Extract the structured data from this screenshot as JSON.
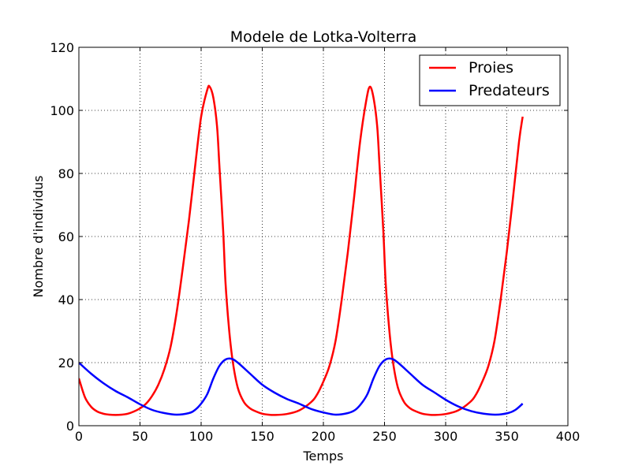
{
  "chart_data": {
    "type": "line",
    "title": "Modele de Lotka-Volterra",
    "xlabel": "Temps",
    "ylabel": "Nombre d'individus",
    "xlim": [
      0,
      400
    ],
    "ylim": [
      0,
      120
    ],
    "xticks": [
      0,
      50,
      100,
      150,
      200,
      250,
      300,
      350,
      400
    ],
    "yticks": [
      0,
      20,
      40,
      60,
      80,
      100,
      120
    ],
    "grid": true,
    "legend_position": "top-right",
    "series": [
      {
        "name": "Proies",
        "color": "#ff0000",
        "points": [
          [
            0,
            15
          ],
          [
            5,
            9
          ],
          [
            10,
            6
          ],
          [
            15,
            4.5
          ],
          [
            20,
            3.8
          ],
          [
            25,
            3.5
          ],
          [
            30,
            3.4
          ],
          [
            35,
            3.5
          ],
          [
            40,
            3.8
          ],
          [
            45,
            4.5
          ],
          [
            50,
            5.5
          ],
          [
            55,
            7
          ],
          [
            60,
            9.5
          ],
          [
            65,
            13
          ],
          [
            70,
            18
          ],
          [
            75,
            25
          ],
          [
            80,
            36
          ],
          [
            85,
            50
          ],
          [
            90,
            65
          ],
          [
            95,
            82
          ],
          [
            100,
            98
          ],
          [
            105,
            106.5
          ],
          [
            107,
            107.5
          ],
          [
            110,
            104
          ],
          [
            113,
            95
          ],
          [
            115,
            82
          ],
          [
            118,
            62
          ],
          [
            120,
            45
          ],
          [
            123,
            30
          ],
          [
            126,
            20
          ],
          [
            130,
            12
          ],
          [
            135,
            7.5
          ],
          [
            140,
            5.5
          ],
          [
            145,
            4.5
          ],
          [
            150,
            3.8
          ],
          [
            155,
            3.5
          ],
          [
            160,
            3.4
          ],
          [
            170,
            3.7
          ],
          [
            180,
            4.8
          ],
          [
            190,
            7.5
          ],
          [
            195,
            10
          ],
          [
            200,
            14
          ],
          [
            205,
            19
          ],
          [
            210,
            27
          ],
          [
            215,
            40
          ],
          [
            220,
            55
          ],
          [
            225,
            72
          ],
          [
            230,
            90
          ],
          [
            235,
            103
          ],
          [
            238,
            107.5
          ],
          [
            241,
            104
          ],
          [
            244,
            95
          ],
          [
            246,
            82
          ],
          [
            249,
            62
          ],
          [
            251,
            45
          ],
          [
            254,
            30
          ],
          [
            257,
            20
          ],
          [
            261,
            12
          ],
          [
            266,
            7.5
          ],
          [
            271,
            5.5
          ],
          [
            276,
            4.5
          ],
          [
            281,
            3.8
          ],
          [
            286,
            3.5
          ],
          [
            291,
            3.4
          ],
          [
            300,
            3.7
          ],
          [
            310,
            4.8
          ],
          [
            320,
            7.5
          ],
          [
            325,
            10
          ],
          [
            330,
            14
          ],
          [
            335,
            19
          ],
          [
            340,
            27
          ],
          [
            345,
            40
          ],
          [
            350,
            55
          ],
          [
            355,
            72
          ],
          [
            360,
            90
          ],
          [
            363,
            98
          ]
        ]
      },
      {
        "name": "Predateurs",
        "color": "#0000ff",
        "points": [
          [
            0,
            20
          ],
          [
            10,
            16.5
          ],
          [
            20,
            13.5
          ],
          [
            30,
            11
          ],
          [
            40,
            9
          ],
          [
            50,
            6.8
          ],
          [
            60,
            5
          ],
          [
            70,
            4
          ],
          [
            80,
            3.5
          ],
          [
            90,
            4
          ],
          [
            95,
            5
          ],
          [
            100,
            7
          ],
          [
            105,
            10
          ],
          [
            110,
            15
          ],
          [
            115,
            19
          ],
          [
            120,
            21
          ],
          [
            125,
            21.2
          ],
          [
            130,
            20
          ],
          [
            140,
            16.5
          ],
          [
            150,
            13
          ],
          [
            160,
            10.5
          ],
          [
            170,
            8.5
          ],
          [
            180,
            7
          ],
          [
            190,
            5.3
          ],
          [
            200,
            4.2
          ],
          [
            210,
            3.5
          ],
          [
            220,
            4
          ],
          [
            226,
            5
          ],
          [
            231,
            7
          ],
          [
            236,
            10
          ],
          [
            241,
            15
          ],
          [
            246,
            19
          ],
          [
            251,
            21
          ],
          [
            256,
            21.2
          ],
          [
            261,
            20
          ],
          [
            271,
            16.5
          ],
          [
            281,
            13
          ],
          [
            291,
            10.5
          ],
          [
            301,
            8
          ],
          [
            311,
            6
          ],
          [
            321,
            4.6
          ],
          [
            331,
            3.8
          ],
          [
            341,
            3.5
          ],
          [
            351,
            4
          ],
          [
            357,
            5
          ],
          [
            363,
            7
          ]
        ]
      }
    ]
  }
}
